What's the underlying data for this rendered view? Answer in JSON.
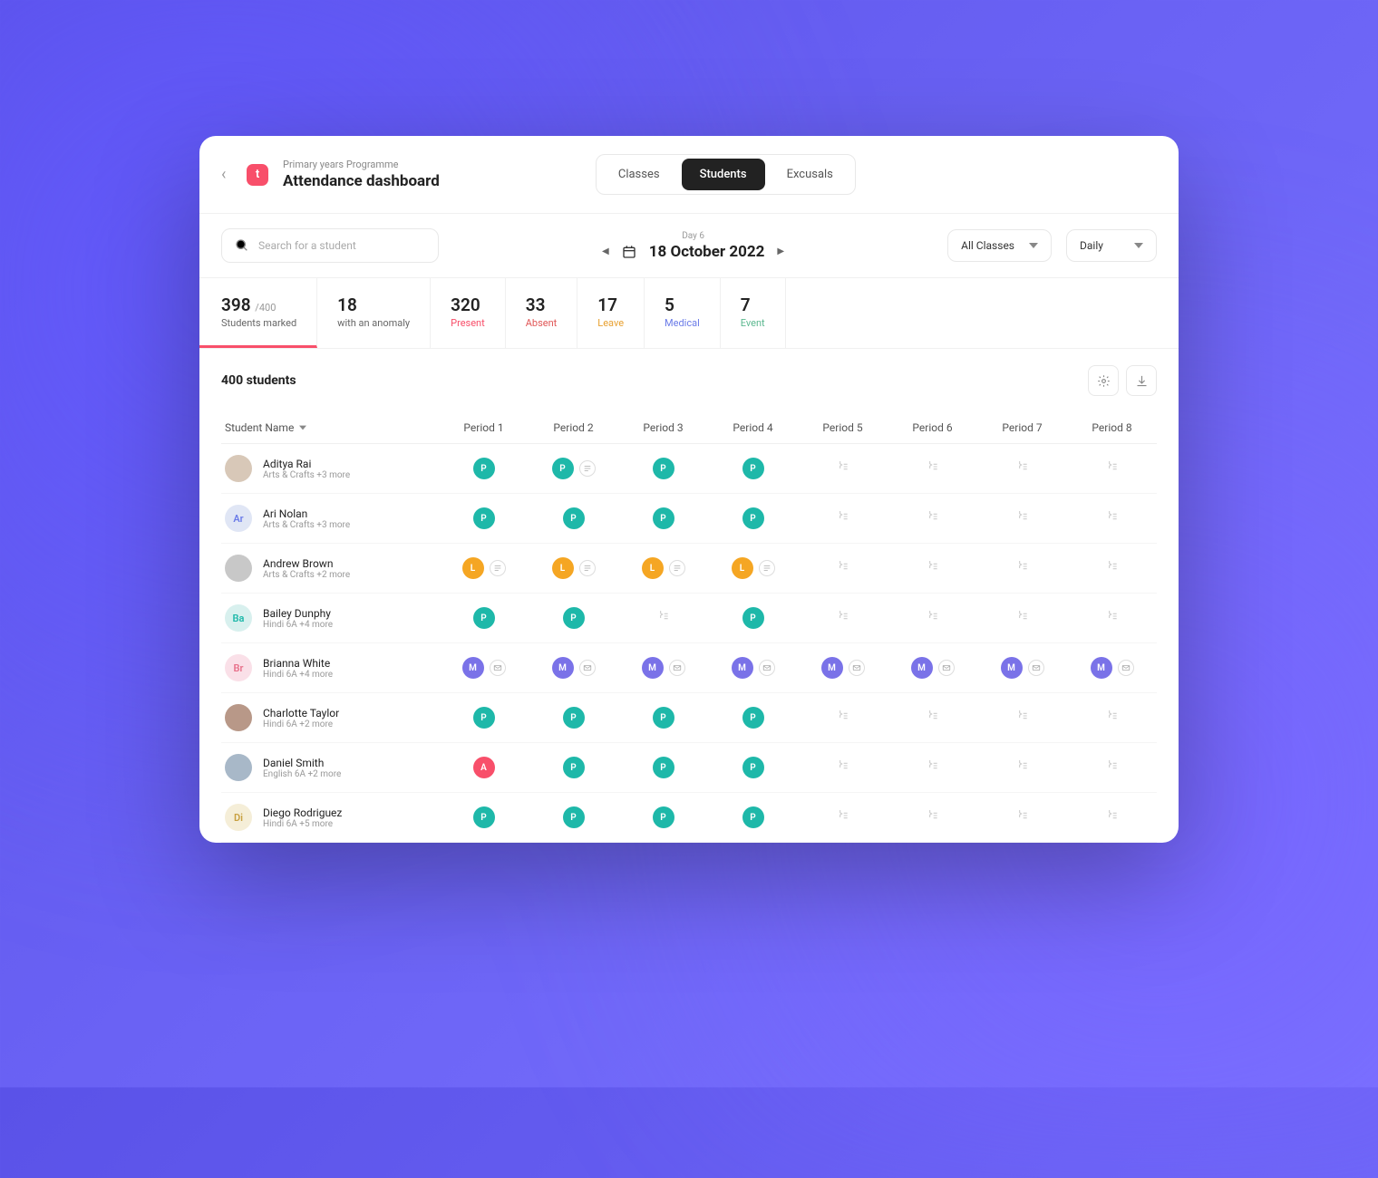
{
  "header": {
    "subtitle": "Primary years Programme",
    "title": "Attendance dashboard",
    "logo_letter": "t"
  },
  "tabs": [
    {
      "label": "Classes",
      "active": false
    },
    {
      "label": "Students",
      "active": true
    },
    {
      "label": "Excusals",
      "active": false
    }
  ],
  "search": {
    "placeholder": "Search for a student"
  },
  "date": {
    "day_label": "Day 6",
    "date_text": "18 October 2022"
  },
  "filters": {
    "class": "All Classes",
    "view": "Daily"
  },
  "stats": [
    {
      "num": "398",
      "denom": "/400",
      "label": "Students marked",
      "cls": "marked"
    },
    {
      "num": "18",
      "label": "with an anomaly",
      "cls": "anomaly"
    },
    {
      "num": "320",
      "label": "Present",
      "cls": "present"
    },
    {
      "num": "33",
      "label": "Absent",
      "cls": "absent"
    },
    {
      "num": "17",
      "label": "Leave",
      "cls": "leave"
    },
    {
      "num": "5",
      "label": "Medical",
      "cls": "medical"
    },
    {
      "num": "7",
      "label": "Event",
      "cls": "event"
    }
  ],
  "list_title": "400 students",
  "columns": {
    "name": "Student Name",
    "periods": [
      "Period 1",
      "Period 2",
      "Period 3",
      "Period 4",
      "Period 5",
      "Period 6",
      "Period 7",
      "Period 8"
    ]
  },
  "avatar_colors": {
    "Ar": {
      "bg": "#e0e6f5",
      "fg": "#6a7be8"
    },
    "Ba": {
      "bg": "#d8f0ee",
      "fg": "#1eb8a9"
    },
    "Br": {
      "bg": "#fae0e8",
      "fg": "#e8708a"
    },
    "Di": {
      "bg": "#f5eed8",
      "fg": "#c8a040"
    }
  },
  "rows": [
    {
      "name": "Aditya Rai",
      "sub": "Arts & Crafts +3 more",
      "avatar": {
        "type": "photo",
        "bg": "#d8c8b8"
      },
      "cells": [
        {
          "s": "P"
        },
        {
          "s": "P",
          "note": true
        },
        {
          "s": "P"
        },
        {
          "s": "P"
        },
        {
          "s": ""
        },
        {
          "s": ""
        },
        {
          "s": ""
        },
        {
          "s": ""
        }
      ]
    },
    {
      "name": "Ari Nolan",
      "sub": "Arts & Crafts +3 more",
      "avatar": {
        "type": "initials",
        "text": "Ar"
      },
      "cells": [
        {
          "s": "P"
        },
        {
          "s": "P"
        },
        {
          "s": "P"
        },
        {
          "s": "P"
        },
        {
          "s": ""
        },
        {
          "s": ""
        },
        {
          "s": ""
        },
        {
          "s": ""
        }
      ]
    },
    {
      "name": "Andrew Brown",
      "sub": "Arts & Crafts +2 more",
      "avatar": {
        "type": "photo",
        "bg": "#c8c8c8"
      },
      "cells": [
        {
          "s": "L",
          "note": true
        },
        {
          "s": "L",
          "note": true
        },
        {
          "s": "L",
          "note": true
        },
        {
          "s": "L",
          "note": true
        },
        {
          "s": ""
        },
        {
          "s": ""
        },
        {
          "s": ""
        },
        {
          "s": ""
        }
      ]
    },
    {
      "name": "Bailey Dunphy",
      "sub": "Hindi 6A +4 more",
      "avatar": {
        "type": "initials",
        "text": "Ba"
      },
      "cells": [
        {
          "s": "P"
        },
        {
          "s": "P"
        },
        {
          "s": ""
        },
        {
          "s": "P"
        },
        {
          "s": ""
        },
        {
          "s": ""
        },
        {
          "s": ""
        },
        {
          "s": ""
        }
      ]
    },
    {
      "name": "Brianna White",
      "sub": "Hindi 6A +4 more",
      "avatar": {
        "type": "initials",
        "text": "Br"
      },
      "cells": [
        {
          "s": "M",
          "note": "mail"
        },
        {
          "s": "M",
          "note": "mail"
        },
        {
          "s": "M",
          "note": "mail"
        },
        {
          "s": "M",
          "note": "mail"
        },
        {
          "s": "M",
          "note": "mail"
        },
        {
          "s": "M",
          "note": "mail"
        },
        {
          "s": "M",
          "note": "mail"
        },
        {
          "s": "M",
          "note": "mail"
        }
      ]
    },
    {
      "name": "Charlotte Taylor",
      "sub": "Hindi 6A +2 more",
      "avatar": {
        "type": "photo",
        "bg": "#b89888"
      },
      "cells": [
        {
          "s": "P"
        },
        {
          "s": "P"
        },
        {
          "s": "P"
        },
        {
          "s": "P"
        },
        {
          "s": ""
        },
        {
          "s": ""
        },
        {
          "s": ""
        },
        {
          "s": ""
        }
      ]
    },
    {
      "name": "Daniel Smith",
      "sub": "English 6A +2 more",
      "avatar": {
        "type": "photo",
        "bg": "#a8b8c8"
      },
      "cells": [
        {
          "s": "A"
        },
        {
          "s": "P"
        },
        {
          "s": "P"
        },
        {
          "s": "P"
        },
        {
          "s": ""
        },
        {
          "s": ""
        },
        {
          "s": ""
        },
        {
          "s": ""
        }
      ]
    },
    {
      "name": "Diego Rodriguez",
      "sub": "Hindi 6A +5 more",
      "avatar": {
        "type": "initials",
        "text": "Di"
      },
      "cells": [
        {
          "s": "P"
        },
        {
          "s": "P"
        },
        {
          "s": "P"
        },
        {
          "s": "P"
        },
        {
          "s": ""
        },
        {
          "s": ""
        },
        {
          "s": ""
        },
        {
          "s": ""
        }
      ]
    }
  ]
}
